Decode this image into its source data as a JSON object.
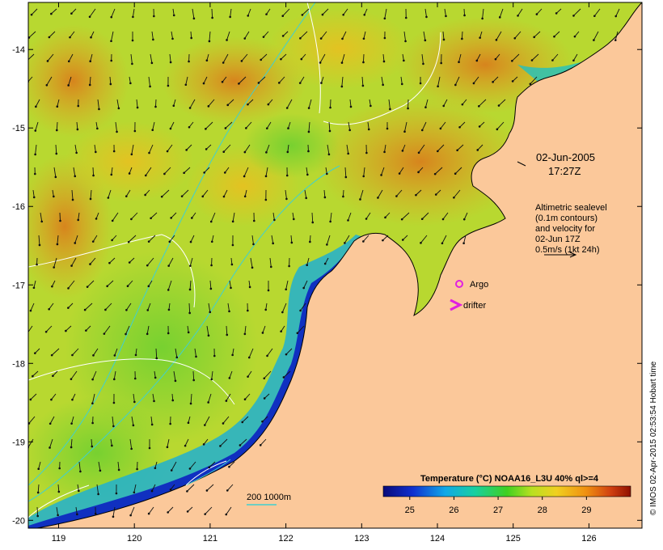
{
  "map": {
    "lon_range": [
      118.6,
      126.7
    ],
    "lat_range": [
      -20.1,
      -13.4
    ],
    "x_ticks": [
      "119",
      "120",
      "121",
      "122",
      "123",
      "124",
      "125",
      "126"
    ],
    "y_ticks": [
      "-14",
      "-15",
      "-16",
      "-17",
      "-18",
      "-19",
      "-20"
    ]
  },
  "annotations": {
    "date": "02-Jun-2005",
    "time": "17:27Z",
    "legend_lines": [
      "Altimetric sealevel",
      "(0.1m contours)",
      "and velocity for",
      "02-Jun 17Z",
      "0.5m/s (1kt 24h)"
    ],
    "argo_label": "Argo",
    "drifter_label": "drifter",
    "depth_label": "200  1000m"
  },
  "colorbar": {
    "title": "Temperature (°C) NOAA16_L3U 40% ql>=4",
    "tick_labels": [
      "25",
      "26",
      "27",
      "28",
      "29"
    ]
  },
  "credit": "© IMOS 02-Apr-2015 02:53:54 Hobart time",
  "colors": {
    "land": "#fbc89a",
    "sst_cold": "#0a1a8c",
    "sst_warm": "#e88a1c",
    "argo": "#e020e0",
    "drifter": "#e020e0",
    "isobath": "#40d0d0",
    "contour": "#ffffff"
  }
}
